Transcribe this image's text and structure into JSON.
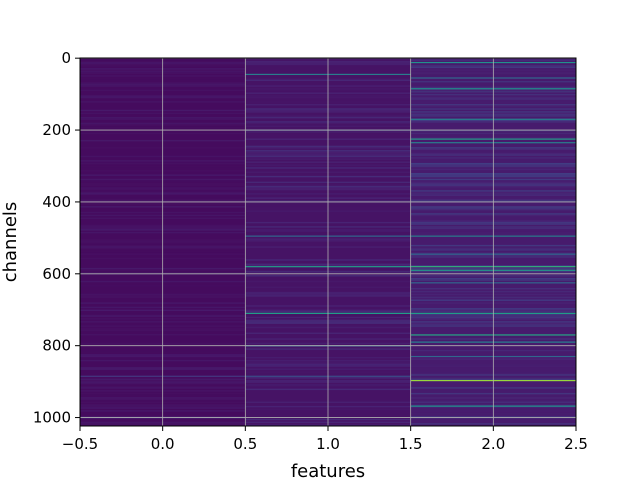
{
  "chart_data": {
    "type": "heatmap",
    "title": "",
    "xlabel": "features",
    "ylabel": "channels",
    "xlim": [
      -0.5,
      2.5
    ],
    "ylim": [
      1023.5,
      -0.5
    ],
    "y_inverted": true,
    "colormap": "viridis",
    "value_range": [
      0,
      1
    ],
    "grid": true,
    "x_ticks": [
      {
        "value": -0.5,
        "label": "−0.5"
      },
      {
        "value": 0.0,
        "label": "0.0"
      },
      {
        "value": 0.5,
        "label": "0.5"
      },
      {
        "value": 1.0,
        "label": "1.0"
      },
      {
        "value": 1.5,
        "label": "1.5"
      },
      {
        "value": 2.0,
        "label": "2.0"
      },
      {
        "value": 2.5,
        "label": "2.5"
      }
    ],
    "y_ticks": [
      {
        "value": 0,
        "label": "0"
      },
      {
        "value": 200,
        "label": "200"
      },
      {
        "value": 400,
        "label": "400"
      },
      {
        "value": 600,
        "label": "600"
      },
      {
        "value": 800,
        "label": "800"
      },
      {
        "value": 1000,
        "label": "1000"
      }
    ],
    "columns": [
      0,
      1,
      2
    ],
    "rows": 1024,
    "background_values": [
      0.04,
      0.07,
      0.1
    ],
    "highlights": [
      {
        "column": 1,
        "channel": 45,
        "value": 0.45
      },
      {
        "column": 1,
        "channel": 200,
        "value": 0.3
      },
      {
        "column": 1,
        "channel": 495,
        "value": 0.4
      },
      {
        "column": 1,
        "channel": 580,
        "value": 0.55
      },
      {
        "column": 1,
        "channel": 710,
        "value": 0.55
      },
      {
        "column": 1,
        "channel": 800,
        "value": 0.4
      },
      {
        "column": 1,
        "channel": 885,
        "value": 0.3
      },
      {
        "column": 2,
        "channel": 12,
        "value": 0.5
      },
      {
        "column": 2,
        "channel": 55,
        "value": 0.4
      },
      {
        "column": 2,
        "channel": 85,
        "value": 0.5
      },
      {
        "column": 2,
        "channel": 170,
        "value": 0.45
      },
      {
        "column": 2,
        "channel": 225,
        "value": 0.55
      },
      {
        "column": 2,
        "channel": 235,
        "value": 0.45
      },
      {
        "column": 2,
        "channel": 495,
        "value": 0.45
      },
      {
        "column": 2,
        "channel": 545,
        "value": 0.4
      },
      {
        "column": 2,
        "channel": 580,
        "value": 0.65
      },
      {
        "column": 2,
        "channel": 590,
        "value": 0.55
      },
      {
        "column": 2,
        "channel": 625,
        "value": 0.4
      },
      {
        "column": 2,
        "channel": 710,
        "value": 0.55
      },
      {
        "column": 2,
        "channel": 770,
        "value": 0.6
      },
      {
        "column": 2,
        "channel": 790,
        "value": 0.45
      },
      {
        "column": 2,
        "channel": 830,
        "value": 0.4
      },
      {
        "column": 2,
        "channel": 897,
        "value": 0.85
      },
      {
        "column": 2,
        "channel": 968,
        "value": 0.5
      },
      {
        "column": 0,
        "channel": 885,
        "value": 0.2
      },
      {
        "column": 0,
        "channel": 1000,
        "value": 0.2
      }
    ]
  }
}
